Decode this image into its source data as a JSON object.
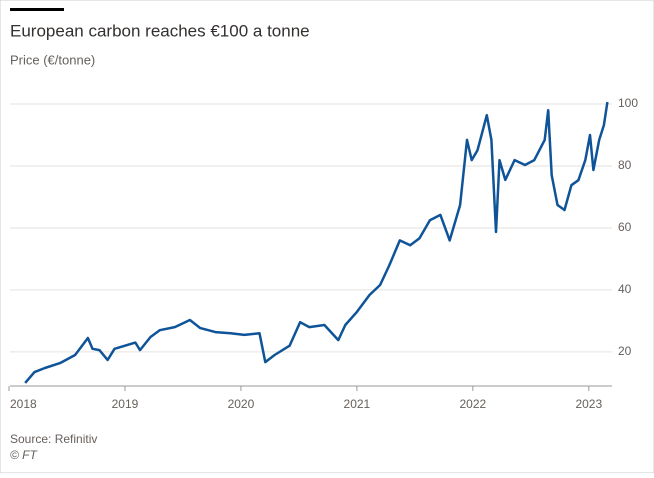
{
  "chart_data": {
    "type": "line",
    "title": "European carbon reaches €100 a tonne",
    "subtitle": "Price (€/tonne)",
    "source": "Source: Refinitiv",
    "credit": "© FT",
    "color": "#0f5499",
    "x": [
      2018.14,
      2018.22,
      2018.31,
      2018.44,
      2018.57,
      2018.68,
      2018.72,
      2018.78,
      2018.85,
      2018.91,
      2019.0,
      2019.09,
      2019.13,
      2019.22,
      2019.3,
      2019.43,
      2019.56,
      2019.65,
      2019.78,
      2019.91,
      2020.03,
      2020.16,
      2020.21,
      2020.29,
      2020.42,
      2020.51,
      2020.59,
      2020.72,
      2020.84,
      2020.9,
      2021.0,
      2021.11,
      2021.2,
      2021.28,
      2021.37,
      2021.46,
      2021.54,
      2021.63,
      2021.72,
      2021.8,
      2021.89,
      2021.95,
      2021.99,
      2022.04,
      2022.12,
      2022.16,
      2022.2,
      2022.23,
      2022.28,
      2022.36,
      2022.45,
      2022.53,
      2022.62,
      2022.65,
      2022.68,
      2022.73,
      2022.79,
      2022.85,
      2022.91,
      2022.97,
      2023.01,
      2023.04,
      2023.09,
      2023.13,
      2023.16
    ],
    "values": [
      10,
      13.5,
      14.8,
      16.4,
      19,
      24.5,
      21,
      20.6,
      17.4,
      21,
      22,
      23,
      20.6,
      24.8,
      27,
      28,
      30.3,
      27.7,
      26.4,
      26,
      25.5,
      26,
      16.7,
      19,
      22,
      29.6,
      28,
      28.7,
      23.8,
      28.7,
      32.9,
      38.4,
      41.6,
      48,
      56,
      54.4,
      56.7,
      62.5,
      64.2,
      56,
      67.4,
      88.4,
      81.9,
      85.1,
      96.4,
      88.4,
      58.7,
      81.9,
      75.5,
      81.9,
      80.3,
      81.9,
      88.4,
      98,
      77,
      67.4,
      65.8,
      73.8,
      75.4,
      81.9,
      90,
      78.7,
      88.4,
      93.2,
      100.6
    ],
    "xlim": [
      2018,
      2023.2
    ],
    "xticks": [
      2018,
      2019,
      2020,
      2021,
      2022,
      2023
    ],
    "ylim": [
      9,
      102
    ],
    "yticks": [
      20,
      40,
      60,
      80,
      100
    ],
    "grid": true
  }
}
